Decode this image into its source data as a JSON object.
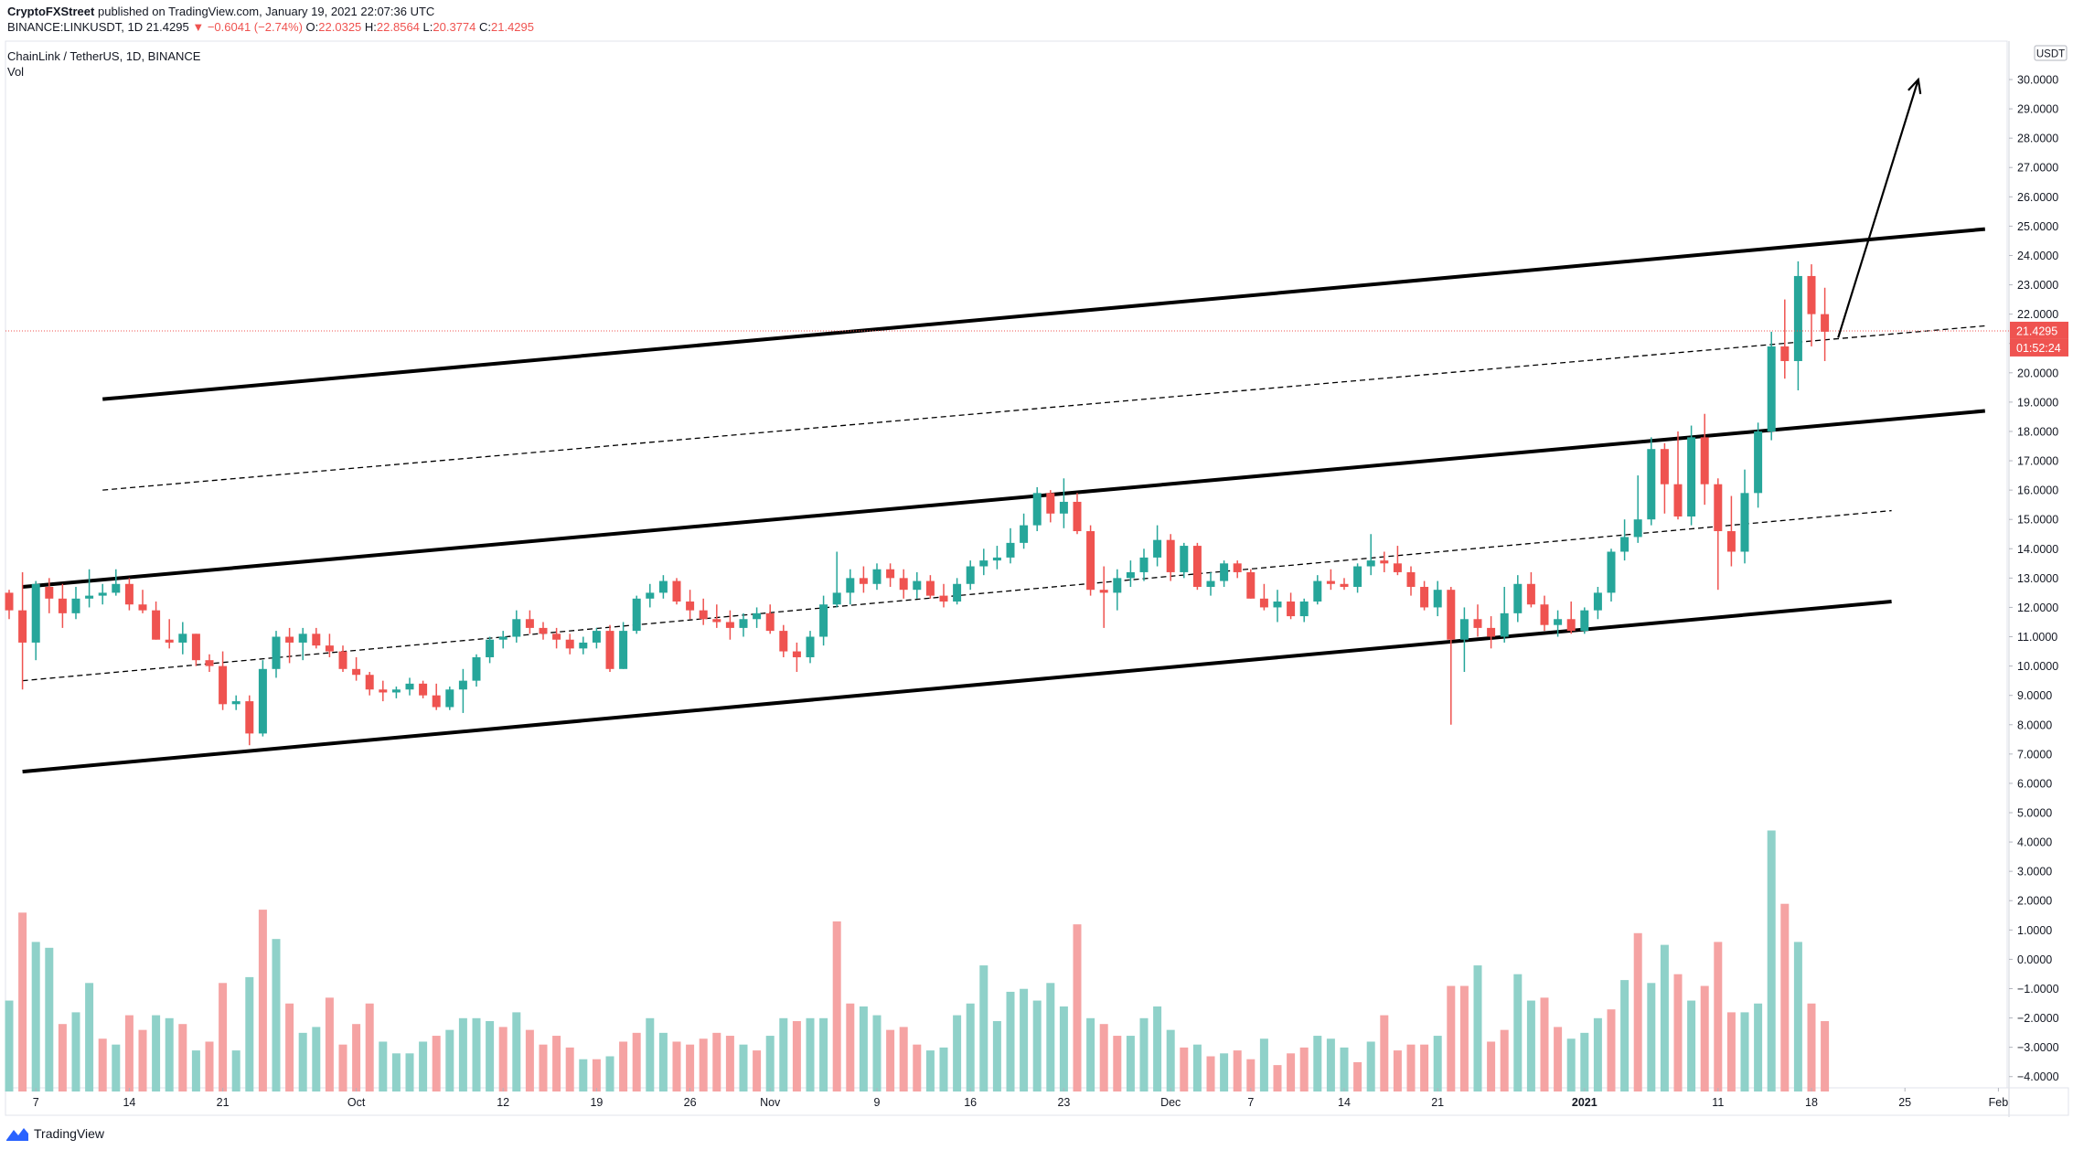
{
  "header": {
    "author": "CryptoFXStreet",
    "published_text": "published on TradingView.com, January 19, 2021 22:07:36 UTC",
    "symbol_code": "BINANCE:LINKUSDT, 1D",
    "last": "21.4295",
    "change": "−0.6041 (−2.74%)",
    "open_label": "O:",
    "open": "22.0325",
    "high_label": "H:",
    "high": "22.8564",
    "low_label": "L:",
    "low": "20.3774",
    "close_label": "C:",
    "close": "21.4295"
  },
  "pane": {
    "symbol_title": "ChainLink / TetherUS, 1D, BINANCE",
    "volume_label": "Vol",
    "currency": "USDT",
    "price_tag": "21.4295",
    "countdown_tag": "01:52:24"
  },
  "logo_text": "TradingView",
  "colors": {
    "up": "#26a69a",
    "down": "#ef5350",
    "vol_up": "#8fd1c9",
    "vol_down": "#f5a3a3",
    "price_line": "#ef5350"
  },
  "chart_data": {
    "type": "candlestick",
    "title": "ChainLink / TetherUS, 1D, BINANCE",
    "ylim": [
      -4.5,
      31
    ],
    "y_ticks": [
      30,
      29,
      28,
      27,
      26,
      25,
      24,
      23,
      22,
      21,
      20,
      19,
      18,
      17,
      16,
      15,
      14,
      13,
      12,
      11,
      10,
      9,
      8,
      7,
      6,
      5,
      4,
      3,
      2,
      1,
      0,
      -1,
      -2,
      -3,
      -4
    ],
    "x_ticks": [
      {
        "label": "7",
        "index": 2
      },
      {
        "label": "14",
        "index": 9
      },
      {
        "label": "21",
        "index": 16
      },
      {
        "label": "Oct",
        "index": 26
      },
      {
        "label": "12",
        "index": 37
      },
      {
        "label": "19",
        "index": 44
      },
      {
        "label": "26",
        "index": 51
      },
      {
        "label": "Nov",
        "index": 57
      },
      {
        "label": "9",
        "index": 65
      },
      {
        "label": "16",
        "index": 72
      },
      {
        "label": "23",
        "index": 79
      },
      {
        "label": "Dec",
        "index": 87
      },
      {
        "label": "7",
        "index": 93
      },
      {
        "label": "14",
        "index": 100
      },
      {
        "label": "21",
        "index": 107
      },
      {
        "label": "2021",
        "index": 118
      },
      {
        "label": "11",
        "index": 128
      },
      {
        "label": "18",
        "index": 135
      },
      {
        "label": "25",
        "index": 142
      },
      {
        "label": "Feb",
        "index": 149
      }
    ],
    "candles": [
      [
        12.5,
        12.6,
        11.6,
        11.9
      ],
      [
        11.9,
        13.2,
        9.2,
        10.8
      ],
      [
        10.8,
        12.9,
        10.2,
        12.8
      ],
      [
        12.7,
        13.0,
        11.8,
        12.3
      ],
      [
        12.3,
        12.8,
        11.3,
        11.8
      ],
      [
        11.8,
        12.7,
        11.6,
        12.3
      ],
      [
        12.3,
        13.3,
        12.0,
        12.4
      ],
      [
        12.4,
        12.8,
        12.1,
        12.5
      ],
      [
        12.5,
        13.3,
        12.4,
        12.8
      ],
      [
        12.8,
        13.0,
        11.9,
        12.1
      ],
      [
        12.1,
        12.6,
        11.8,
        11.9
      ],
      [
        11.9,
        12.2,
        10.9,
        10.9
      ],
      [
        10.9,
        11.6,
        10.6,
        10.8
      ],
      [
        10.8,
        11.5,
        10.4,
        11.1
      ],
      [
        11.1,
        11.1,
        10.0,
        10.2
      ],
      [
        10.2,
        10.4,
        9.8,
        10.0
      ],
      [
        10.0,
        10.5,
        8.5,
        8.7
      ],
      [
        8.7,
        9.0,
        8.5,
        8.8
      ],
      [
        8.8,
        9.0,
        7.3,
        7.7
      ],
      [
        7.7,
        10.2,
        7.6,
        9.9
      ],
      [
        9.9,
        11.2,
        9.6,
        11.0
      ],
      [
        11.0,
        11.3,
        10.1,
        10.8
      ],
      [
        10.8,
        11.3,
        10.2,
        11.1
      ],
      [
        11.1,
        11.3,
        10.6,
        10.7
      ],
      [
        10.7,
        11.1,
        10.3,
        10.5
      ],
      [
        10.5,
        10.7,
        9.8,
        9.9
      ],
      [
        9.9,
        10.3,
        9.5,
        9.7
      ],
      [
        9.7,
        9.8,
        9.0,
        9.2
      ],
      [
        9.2,
        9.5,
        8.8,
        9.1
      ],
      [
        9.1,
        9.3,
        8.9,
        9.2
      ],
      [
        9.2,
        9.6,
        9.0,
        9.4
      ],
      [
        9.4,
        9.5,
        8.9,
        9.0
      ],
      [
        9.0,
        9.4,
        8.5,
        8.6
      ],
      [
        8.6,
        9.3,
        8.5,
        9.2
      ],
      [
        9.2,
        9.9,
        8.4,
        9.5
      ],
      [
        9.5,
        10.4,
        9.3,
        10.3
      ],
      [
        10.3,
        11.0,
        10.1,
        10.9
      ],
      [
        10.9,
        11.2,
        10.6,
        11.0
      ],
      [
        11.0,
        11.9,
        10.8,
        11.6
      ],
      [
        11.6,
        11.9,
        11.1,
        11.3
      ],
      [
        11.3,
        11.5,
        10.9,
        11.1
      ],
      [
        11.1,
        11.3,
        10.6,
        10.9
      ],
      [
        10.9,
        11.1,
        10.4,
        10.6
      ],
      [
        10.6,
        11.0,
        10.4,
        10.8
      ],
      [
        10.8,
        11.3,
        10.6,
        11.2
      ],
      [
        11.2,
        11.4,
        9.8,
        9.9
      ],
      [
        9.9,
        11.5,
        9.9,
        11.2
      ],
      [
        11.2,
        12.4,
        11.1,
        12.3
      ],
      [
        12.3,
        12.8,
        12.0,
        12.5
      ],
      [
        12.5,
        13.1,
        12.3,
        12.9
      ],
      [
        12.9,
        13.0,
        12.1,
        12.2
      ],
      [
        12.2,
        12.6,
        11.6,
        11.9
      ],
      [
        11.9,
        12.3,
        11.4,
        11.6
      ],
      [
        11.6,
        12.1,
        11.3,
        11.5
      ],
      [
        11.5,
        11.9,
        10.9,
        11.3
      ],
      [
        11.3,
        11.8,
        11.0,
        11.6
      ],
      [
        11.6,
        12.0,
        11.3,
        11.8
      ],
      [
        11.8,
        12.1,
        11.1,
        11.2
      ],
      [
        11.2,
        11.4,
        10.3,
        10.5
      ],
      [
        10.5,
        10.8,
        9.8,
        10.3
      ],
      [
        10.3,
        11.2,
        10.1,
        11.0
      ],
      [
        11.0,
        12.4,
        10.7,
        12.1
      ],
      [
        12.1,
        13.9,
        12.0,
        12.5
      ],
      [
        12.5,
        13.3,
        12.1,
        13.0
      ],
      [
        13.0,
        13.4,
        12.5,
        12.8
      ],
      [
        12.8,
        13.5,
        12.6,
        13.3
      ],
      [
        13.3,
        13.5,
        12.7,
        13.0
      ],
      [
        13.0,
        13.3,
        12.3,
        12.6
      ],
      [
        12.6,
        13.2,
        12.3,
        12.9
      ],
      [
        12.9,
        13.1,
        12.3,
        12.4
      ],
      [
        12.4,
        12.8,
        12.0,
        12.2
      ],
      [
        12.2,
        13.0,
        12.1,
        12.8
      ],
      [
        12.8,
        13.6,
        12.6,
        13.4
      ],
      [
        13.4,
        14.0,
        13.1,
        13.6
      ],
      [
        13.6,
        14.1,
        13.3,
        13.7
      ],
      [
        13.7,
        14.7,
        13.5,
        14.2
      ],
      [
        14.2,
        15.2,
        14.0,
        14.8
      ],
      [
        14.8,
        16.1,
        14.6,
        15.9
      ],
      [
        15.9,
        16.0,
        14.9,
        15.2
      ],
      [
        15.2,
        16.4,
        14.7,
        15.6
      ],
      [
        15.6,
        15.9,
        14.5,
        14.6
      ],
      [
        14.6,
        14.8,
        12.4,
        12.6
      ],
      [
        12.6,
        13.4,
        11.3,
        12.5
      ],
      [
        12.5,
        13.3,
        11.9,
        13.0
      ],
      [
        13.0,
        13.6,
        12.7,
        13.2
      ],
      [
        13.2,
        14.0,
        12.9,
        13.7
      ],
      [
        13.7,
        14.8,
        13.4,
        14.3
      ],
      [
        14.3,
        14.5,
        12.9,
        13.2
      ],
      [
        13.2,
        14.2,
        13.0,
        14.1
      ],
      [
        14.1,
        14.2,
        12.6,
        12.7
      ],
      [
        12.7,
        13.2,
        12.4,
        12.9
      ],
      [
        12.9,
        13.6,
        12.7,
        13.5
      ],
      [
        13.5,
        13.6,
        13.0,
        13.2
      ],
      [
        13.2,
        13.3,
        12.3,
        12.3
      ],
      [
        12.3,
        12.8,
        11.9,
        12.0
      ],
      [
        12.0,
        12.6,
        11.5,
        12.2
      ],
      [
        12.2,
        12.5,
        11.6,
        11.7
      ],
      [
        11.7,
        12.3,
        11.5,
        12.2
      ],
      [
        12.2,
        13.1,
        12.1,
        12.9
      ],
      [
        12.9,
        13.3,
        12.6,
        12.8
      ],
      [
        12.8,
        13.0,
        12.6,
        12.7
      ],
      [
        12.7,
        13.5,
        12.5,
        13.4
      ],
      [
        13.4,
        14.5,
        13.1,
        13.6
      ],
      [
        13.6,
        13.9,
        13.2,
        13.5
      ],
      [
        13.5,
        14.1,
        13.1,
        13.2
      ],
      [
        13.2,
        13.4,
        12.4,
        12.7
      ],
      [
        12.7,
        12.9,
        11.9,
        12.0
      ],
      [
        12.0,
        12.9,
        11.7,
        12.6
      ],
      [
        12.6,
        12.7,
        8.0,
        10.9
      ],
      [
        10.9,
        12.0,
        9.8,
        11.6
      ],
      [
        11.6,
        12.1,
        11.0,
        11.3
      ],
      [
        11.3,
        11.7,
        10.6,
        11.0
      ],
      [
        11.0,
        12.7,
        10.8,
        11.8
      ],
      [
        11.8,
        13.1,
        11.5,
        12.8
      ],
      [
        12.8,
        13.2,
        12.0,
        12.1
      ],
      [
        12.1,
        12.4,
        11.2,
        11.4
      ],
      [
        11.4,
        11.9,
        11.0,
        11.6
      ],
      [
        11.6,
        12.2,
        11.1,
        11.2
      ],
      [
        11.2,
        12.0,
        11.1,
        11.9
      ],
      [
        11.9,
        12.7,
        11.6,
        12.5
      ],
      [
        12.5,
        14.0,
        12.2,
        13.9
      ],
      [
        13.9,
        15.0,
        13.6,
        14.4
      ],
      [
        14.4,
        16.5,
        14.2,
        15.0
      ],
      [
        15.0,
        17.8,
        14.8,
        17.4
      ],
      [
        17.4,
        17.6,
        15.2,
        16.2
      ],
      [
        16.2,
        18.0,
        15.0,
        15.1
      ],
      [
        15.1,
        18.2,
        14.8,
        17.8
      ],
      [
        17.8,
        18.6,
        15.5,
        16.2
      ],
      [
        16.2,
        16.4,
        12.6,
        14.6
      ],
      [
        14.6,
        15.8,
        13.4,
        13.9
      ],
      [
        13.9,
        16.7,
        13.5,
        15.9
      ],
      [
        15.9,
        18.3,
        15.4,
        18.0
      ],
      [
        18.0,
        21.4,
        17.7,
        20.9
      ],
      [
        20.9,
        22.5,
        19.8,
        20.4
      ],
      [
        20.4,
        23.8,
        19.4,
        23.3
      ],
      [
        23.3,
        23.7,
        20.9,
        22.0
      ],
      [
        22.0,
        22.9,
        20.4,
        21.4
      ]
    ],
    "volume_bars": [
      [
        -1.4,
        1
      ],
      [
        1.6,
        0
      ],
      [
        0.6,
        1
      ],
      [
        0.4,
        1
      ],
      [
        -2.2,
        0
      ],
      [
        -1.8,
        1
      ],
      [
        -0.8,
        1
      ],
      [
        -2.7,
        0
      ],
      [
        -2.9,
        1
      ],
      [
        -1.9,
        0
      ],
      [
        -2.4,
        0
      ],
      [
        -1.9,
        1
      ],
      [
        -2.0,
        1
      ],
      [
        -2.2,
        0
      ],
      [
        -3.1,
        1
      ],
      [
        -2.8,
        0
      ],
      [
        -0.8,
        0
      ],
      [
        -3.1,
        1
      ],
      [
        -0.6,
        1
      ],
      [
        1.7,
        0
      ],
      [
        0.7,
        1
      ],
      [
        -1.5,
        0
      ],
      [
        -2.5,
        1
      ],
      [
        -2.3,
        1
      ],
      [
        -1.3,
        0
      ],
      [
        -2.9,
        0
      ],
      [
        -2.2,
        0
      ],
      [
        -1.5,
        0
      ],
      [
        -2.8,
        1
      ],
      [
        -3.2,
        1
      ],
      [
        -3.2,
        1
      ],
      [
        -2.8,
        1
      ],
      [
        -2.6,
        0
      ],
      [
        -2.4,
        1
      ],
      [
        -2.0,
        1
      ],
      [
        -2.0,
        1
      ],
      [
        -2.1,
        1
      ],
      [
        -2.3,
        0
      ],
      [
        -1.8,
        1
      ],
      [
        -2.4,
        0
      ],
      [
        -2.9,
        0
      ],
      [
        -2.6,
        0
      ],
      [
        -3.0,
        0
      ],
      [
        -3.4,
        1
      ],
      [
        -3.4,
        0
      ],
      [
        -3.3,
        1
      ],
      [
        -2.8,
        0
      ],
      [
        -2.5,
        0
      ],
      [
        -2.0,
        1
      ],
      [
        -2.5,
        1
      ],
      [
        -2.8,
        0
      ],
      [
        -2.9,
        0
      ],
      [
        -2.7,
        0
      ],
      [
        -2.5,
        0
      ],
      [
        -2.6,
        0
      ],
      [
        -2.9,
        1
      ],
      [
        -3.1,
        0
      ],
      [
        -2.6,
        1
      ],
      [
        -2.0,
        1
      ],
      [
        -2.1,
        0
      ],
      [
        -2.0,
        1
      ],
      [
        -2.0,
        1
      ],
      [
        1.3,
        0
      ],
      [
        -1.5,
        0
      ],
      [
        -1.6,
        1
      ],
      [
        -1.9,
        1
      ],
      [
        -2.4,
        0
      ],
      [
        -2.3,
        0
      ],
      [
        -2.9,
        0
      ],
      [
        -3.1,
        1
      ],
      [
        -3.0,
        1
      ],
      [
        -1.9,
        1
      ],
      [
        -1.5,
        1
      ],
      [
        -0.2,
        1
      ],
      [
        -2.1,
        1
      ],
      [
        -1.1,
        1
      ],
      [
        -1.0,
        1
      ],
      [
        -1.4,
        1
      ],
      [
        -0.8,
        1
      ],
      [
        -1.6,
        1
      ],
      [
        1.2,
        0
      ],
      [
        -2.0,
        1
      ],
      [
        -2.2,
        0
      ],
      [
        -2.6,
        0
      ],
      [
        -2.6,
        1
      ],
      [
        -2.0,
        1
      ],
      [
        -1.6,
        1
      ],
      [
        -2.4,
        1
      ],
      [
        -3.0,
        0
      ],
      [
        -2.9,
        1
      ],
      [
        -3.3,
        0
      ],
      [
        -3.2,
        1
      ],
      [
        -3.1,
        0
      ],
      [
        -3.4,
        0
      ],
      [
        -2.7,
        1
      ],
      [
        -3.6,
        0
      ],
      [
        -3.2,
        0
      ],
      [
        -3.0,
        0
      ],
      [
        -2.6,
        1
      ],
      [
        -2.7,
        1
      ],
      [
        -3.0,
        1
      ],
      [
        -3.5,
        0
      ],
      [
        -2.8,
        1
      ],
      [
        -1.9,
        0
      ],
      [
        -3.1,
        0
      ],
      [
        -2.9,
        0
      ],
      [
        -2.9,
        0
      ],
      [
        -2.6,
        1
      ],
      [
        -0.9,
        0
      ],
      [
        -0.9,
        0
      ],
      [
        -0.2,
        1
      ],
      [
        -2.8,
        0
      ],
      [
        -2.4,
        0
      ],
      [
        -0.5,
        1
      ],
      [
        -1.4,
        1
      ],
      [
        -1.3,
        0
      ],
      [
        -2.3,
        0
      ],
      [
        -2.7,
        1
      ],
      [
        -2.5,
        1
      ],
      [
        -2.0,
        1
      ],
      [
        -1.7,
        0
      ],
      [
        -0.7,
        1
      ],
      [
        0.9,
        0
      ],
      [
        -0.8,
        1
      ],
      [
        0.5,
        1
      ],
      [
        -0.5,
        0
      ],
      [
        -1.4,
        1
      ],
      [
        -0.9,
        0
      ],
      [
        0.6,
        0
      ],
      [
        -1.8,
        0
      ],
      [
        -1.8,
        1
      ],
      [
        -1.5,
        1
      ],
      [
        4.4,
        1
      ],
      [
        1.9,
        0
      ],
      [
        0.6,
        1
      ],
      [
        -1.5,
        0
      ],
      [
        -2.1,
        0
      ]
    ],
    "trendlines": [
      {
        "name": "channel-top",
        "style": "solid",
        "from": [
          7,
          19.1
        ],
        "to": [
          148,
          24.9
        ]
      },
      {
        "name": "channel-mid-upper",
        "style": "dashed",
        "from": [
          7,
          16.0
        ],
        "to": [
          148,
          21.6
        ]
      },
      {
        "name": "channel-middle",
        "style": "solid",
        "from": [
          1,
          12.7
        ],
        "to": [
          148,
          18.7
        ]
      },
      {
        "name": "channel-mid-lower",
        "style": "dashed",
        "from": [
          1,
          9.5
        ],
        "to": [
          141,
          15.3
        ]
      },
      {
        "name": "channel-bottom",
        "style": "solid",
        "from": [
          1,
          6.4
        ],
        "to": [
          141,
          12.2
        ]
      }
    ],
    "arrow": {
      "from": [
        137,
        21.2
      ],
      "to": [
        143,
        30.0
      ]
    },
    "last_price": 21.4295
  }
}
